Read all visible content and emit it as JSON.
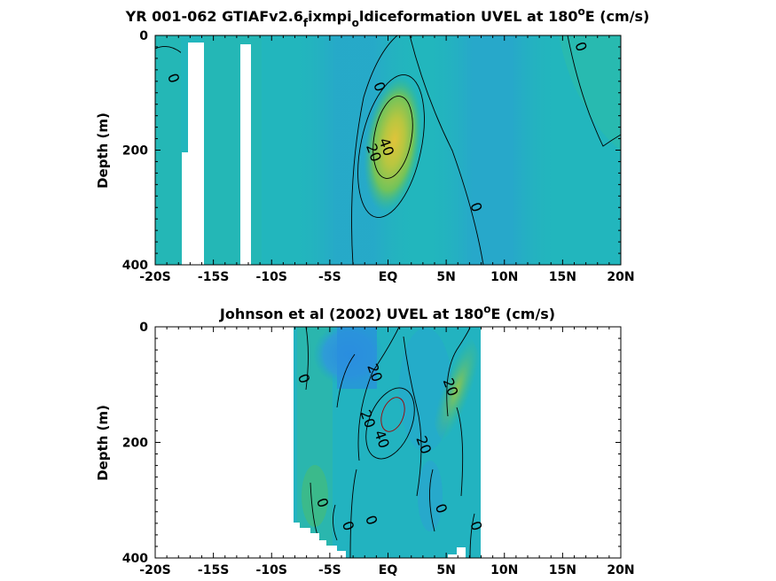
{
  "chart_data": [
    {
      "type": "heatmap",
      "title": {
        "prefix": "YR 001-062 GTIAFv2.6",
        "sub1": "f",
        "mid": "ixmpi",
        "sub2": "o",
        "rest": "ldiceformation UVEL at 180",
        "sup": "o",
        "suffix": "E (cm/s)"
      },
      "ylabel": "Depth (m)",
      "xlim": [
        -20,
        20
      ],
      "ylim": [
        400,
        0
      ],
      "x_ticks": [
        -20,
        -15,
        -10,
        -5,
        0,
        5,
        10,
        15,
        20
      ],
      "x_tick_labels": [
        "-20S",
        "-15S",
        "-10S",
        "-5S",
        "EQ",
        "5N",
        "10N",
        "15N",
        "20N"
      ],
      "y_ticks": [
        0,
        200,
        400
      ],
      "y_tick_labels": [
        "0",
        "200",
        "400"
      ],
      "core": {
        "lat": 0.5,
        "depth": 175,
        "max_speed": 45
      },
      "contour_labels": [
        {
          "text": "0",
          "lat": -18.5,
          "depth": 75
        },
        {
          "text": "0",
          "lat": -0.8,
          "depth": 90
        },
        {
          "text": "40",
          "lat": -0.2,
          "depth": 195
        },
        {
          "text": "20",
          "lat": -1.3,
          "depth": 205
        },
        {
          "text": "0",
          "lat": 7.5,
          "depth": 300
        },
        {
          "text": "0",
          "lat": 16.5,
          "depth": 20
        }
      ]
    },
    {
      "type": "heatmap",
      "title": {
        "prefix": "Johnson et al (2002) UVEL at 180",
        "sup": "o",
        "suffix": "E (cm/s)"
      },
      "ylabel": "Depth (m)",
      "xlim": [
        -20,
        20
      ],
      "ylim": [
        400,
        0
      ],
      "x_ticks": [
        -20,
        -15,
        -10,
        -5,
        0,
        5,
        10,
        15,
        20
      ],
      "x_tick_labels": [
        "-20S",
        "-15S",
        "-10S",
        "-5S",
        "EQ",
        "5N",
        "10N",
        "15N",
        "20N"
      ],
      "y_ticks": [
        0,
        200,
        400
      ],
      "y_tick_labels": [
        "0",
        "200",
        "400"
      ],
      "data_extent": [
        -8,
        8
      ],
      "core": {
        "lat": 0.5,
        "depth": 170,
        "max_speed": 50
      },
      "contour_labels": [
        {
          "text": "0",
          "lat": -7.3,
          "depth": 90
        },
        {
          "text": "20",
          "lat": -1.2,
          "depth": 80
        },
        {
          "text": "20",
          "lat": 5.3,
          "depth": 105
        },
        {
          "text": "20",
          "lat": -1.8,
          "depth": 160
        },
        {
          "text": "40",
          "lat": -0.6,
          "depth": 195
        },
        {
          "text": "20",
          "lat": 3.0,
          "depth": 205
        },
        {
          "text": "0",
          "lat": -5.7,
          "depth": 305
        },
        {
          "text": "0",
          "lat": -1.5,
          "depth": 335
        },
        {
          "text": "0",
          "lat": -3.5,
          "depth": 345
        },
        {
          "text": "0",
          "lat": 4.5,
          "depth": 315
        },
        {
          "text": "0",
          "lat": 7.5,
          "depth": 345
        }
      ]
    }
  ]
}
